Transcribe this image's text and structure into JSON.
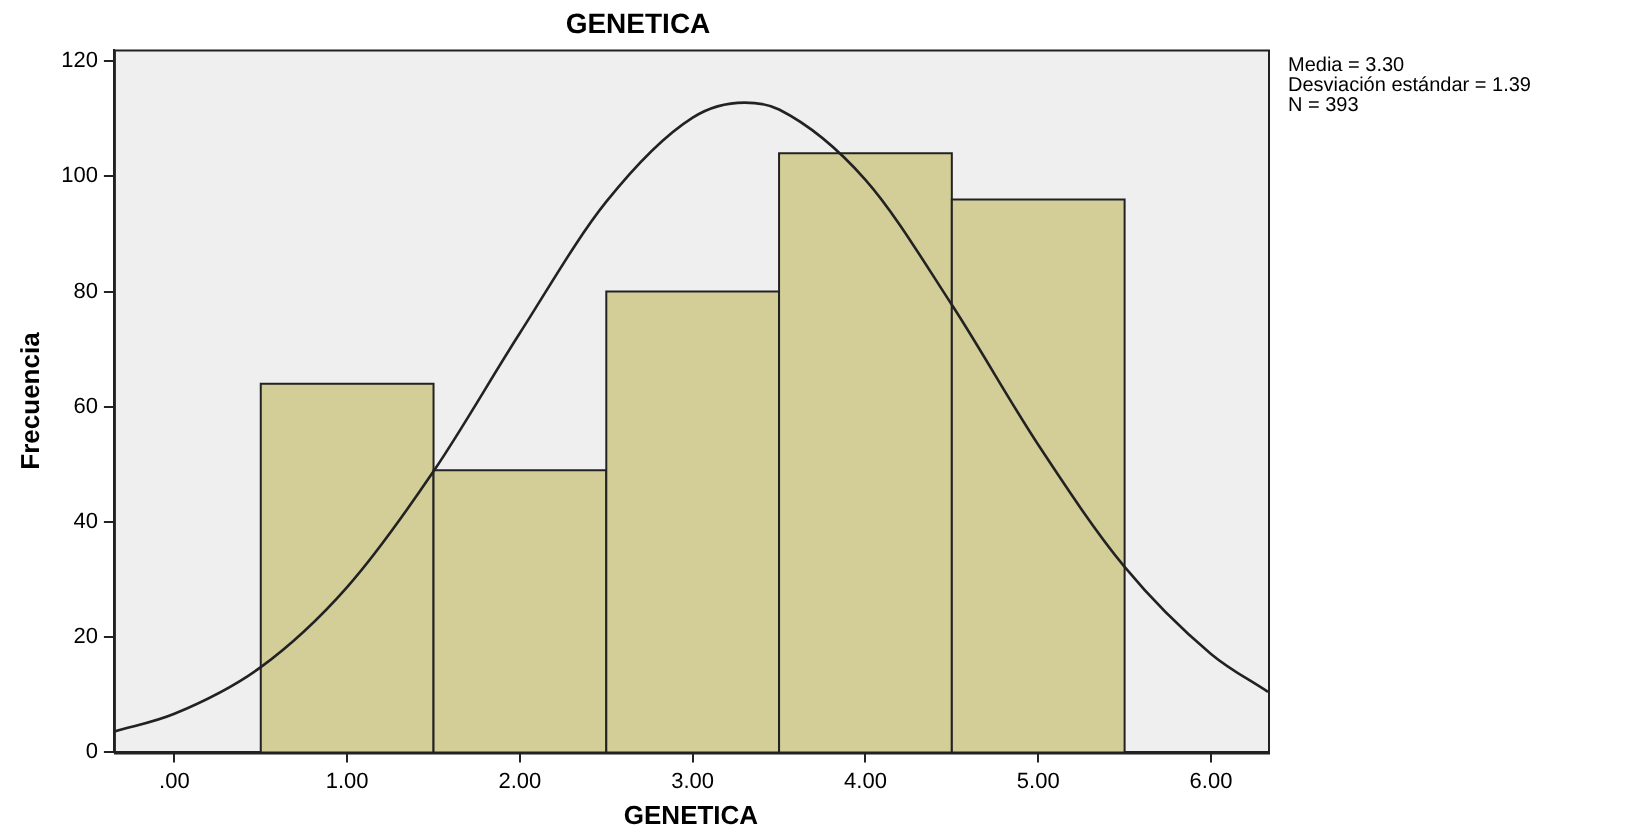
{
  "chart_data": {
    "type": "histogram",
    "title": "GENETICA",
    "xlabel": "GENETICA",
    "ylabel": "Frecuencia",
    "bins": [
      0.5,
      1.5,
      2.5,
      3.5,
      4.5,
      5.5
    ],
    "values": [
      64,
      49,
      80,
      104,
      96
    ],
    "color": "#d3ce98",
    "series": [
      {
        "type": "line",
        "color": "#222222",
        "x": [
          -0.35,
          0,
          0.5,
          1,
          1.5,
          2,
          2.5,
          3,
          3.3,
          3.5,
          4,
          4.5,
          5,
          5.5,
          6,
          6.33
        ],
        "values": [
          3.6,
          6.7,
          14.8,
          28.7,
          48.8,
          72.8,
          95.6,
          110.2,
          112.8,
          111.6,
          99.4,
          77.7,
          53.4,
          32.2,
          17.1,
          10.5
        ]
      }
    ],
    "xlim": [
      -0.35,
      6.33
    ],
    "ylim": [
      0,
      122
    ],
    "xticks": [
      {
        "value": 0,
        "label": ".00"
      },
      {
        "value": 1,
        "label": "1.00"
      },
      {
        "value": 2,
        "label": "2.00"
      },
      {
        "value": 3,
        "label": "3.00"
      },
      {
        "value": 4,
        "label": "4.00"
      },
      {
        "value": 5,
        "label": "5.00"
      },
      {
        "value": 6,
        "label": "6.00"
      }
    ],
    "yticks": [
      0,
      20,
      40,
      60,
      80,
      100,
      120
    ],
    "annotations": [
      "Media = 3.30",
      "Desviación estándar = 1.39",
      "N = 393"
    ],
    "grid": false,
    "legend": false,
    "marker": "none"
  }
}
